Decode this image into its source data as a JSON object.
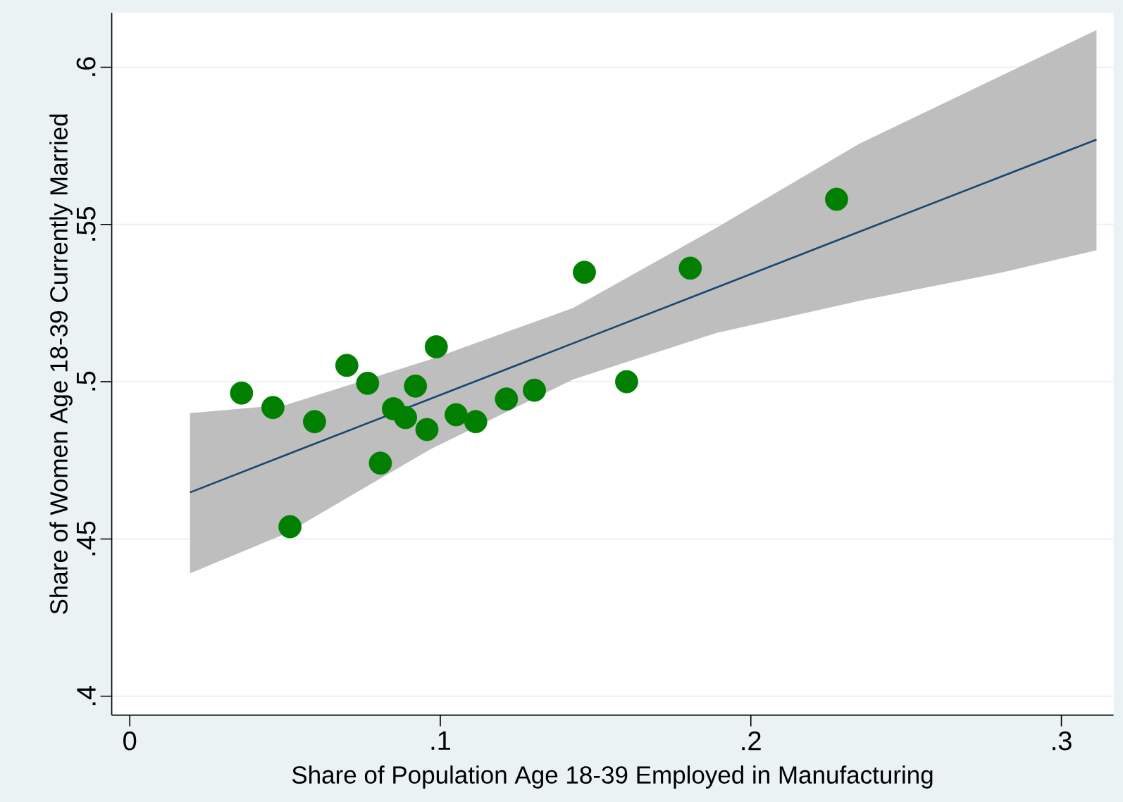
{
  "chart_data": {
    "type": "scatter",
    "xlabel": "Share of Population Age 18-39 Employed in Manufacturing",
    "ylabel": "Share of Women Age 18-39 Currently Married",
    "xlim": [
      -0.0058,
      0.3168
    ],
    "ylim": [
      0.394,
      0.6173
    ],
    "xticks": [
      0,
      {
        "value": 0.1,
        "label": ".1"
      },
      {
        "value": 0.2,
        "label": ".2"
      },
      {
        "value": 0.3,
        "label": ".3"
      }
    ],
    "yticks": [
      {
        "value": 0.4,
        "label": ".4"
      },
      {
        "value": 0.45,
        "label": ".45"
      },
      {
        "value": 0.5,
        "label": ".5"
      },
      {
        "value": 0.55,
        "label": ".55"
      },
      {
        "value": 0.6,
        "label": ".6"
      }
    ],
    "grid": "y",
    "marker": "circle",
    "series": [
      {
        "type": "line",
        "marker": "none",
        "color": "#1a476f",
        "x": [
          0.0194,
          0.0505,
          0.0966,
          0.1427,
          0.1888,
          0.235,
          0.2811,
          0.3113
        ],
        "values": [
          0.4648,
          0.4768,
          0.4945,
          0.5122,
          0.5299,
          0.5477,
          0.5654,
          0.577
        ],
        "lower": [
          0.4391,
          0.4518,
          0.4784,
          0.5007,
          0.5155,
          0.5257,
          0.5348,
          0.5418
        ],
        "upper": [
          0.49,
          0.4927,
          0.507,
          0.5234,
          0.5489,
          0.5757,
          0.5975,
          0.6118
        ]
      },
      {
        "type": "scatter",
        "color": "#007f00",
        "x": [
          0.036,
          0.0461,
          0.0516,
          0.0595,
          0.0699,
          0.0766,
          0.0807,
          0.0849,
          0.0888,
          0.092,
          0.0957,
          0.0987,
          0.1051,
          0.1114,
          0.1213,
          0.1303,
          0.1464,
          0.16,
          0.1805,
          0.2276
        ],
        "values": [
          0.4964,
          0.4918,
          0.4539,
          0.4873,
          0.5052,
          0.4995,
          0.4741,
          0.4914,
          0.4886,
          0.4986,
          0.4848,
          0.5111,
          0.4895,
          0.4873,
          0.4945,
          0.4973,
          0.5348,
          0.5,
          0.5361,
          0.558
        ]
      }
    ]
  }
}
